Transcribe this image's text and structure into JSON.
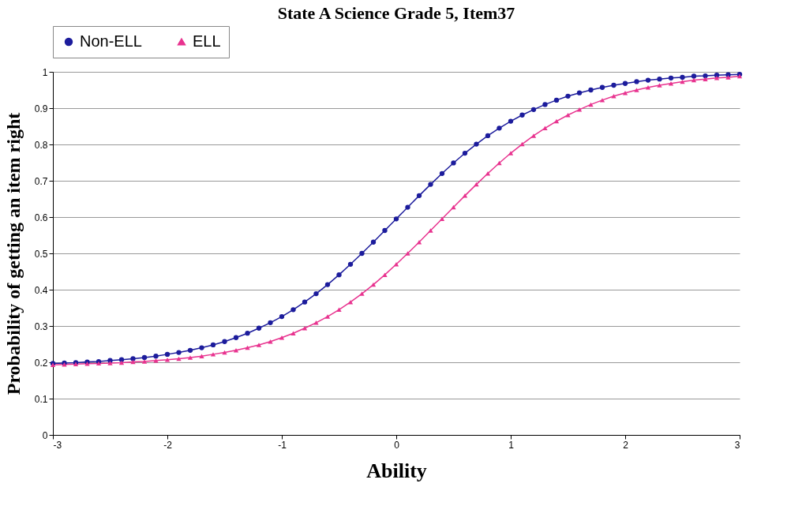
{
  "chart_data": {
    "type": "line",
    "title": "State A Science Grade 5, Item37",
    "xlabel": "Ability",
    "ylabel": "Probability of getting an item right",
    "x": [
      -3,
      -2.9,
      -2.8,
      -2.7,
      -2.6,
      -2.5,
      -2.4,
      -2.3,
      -2.2,
      -2.1,
      -2,
      -1.9,
      -1.8,
      -1.7,
      -1.6,
      -1.5,
      -1.4,
      -1.3,
      -1.2,
      -1.1,
      -1,
      -0.9,
      -0.8,
      -0.7,
      -0.6,
      -0.5,
      -0.4,
      -0.3,
      -0.2,
      -0.1,
      0,
      0.1,
      0.2,
      0.3,
      0.4,
      0.5,
      0.6,
      0.7,
      0.8,
      0.9,
      1,
      1.1,
      1.2,
      1.3,
      1.4,
      1.5,
      1.6,
      1.7,
      1.8,
      1.9,
      2,
      2.1,
      2.2,
      2.3,
      2.4,
      2.5,
      2.6,
      2.7,
      2.8,
      2.9,
      3
    ],
    "series": [
      {
        "name": "Non-ELL",
        "color": "#1c1c9c",
        "marker": "circle",
        "values": [
          0.197,
          0.198,
          0.199,
          0.201,
          0.202,
          0.205,
          0.207,
          0.21,
          0.213,
          0.217,
          0.222,
          0.227,
          0.233,
          0.24,
          0.248,
          0.257,
          0.268,
          0.28,
          0.294,
          0.309,
          0.326,
          0.345,
          0.366,
          0.389,
          0.414,
          0.441,
          0.47,
          0.5,
          0.531,
          0.563,
          0.595,
          0.627,
          0.659,
          0.69,
          0.72,
          0.749,
          0.776,
          0.801,
          0.824,
          0.845,
          0.864,
          0.881,
          0.896,
          0.91,
          0.922,
          0.933,
          0.942,
          0.95,
          0.957,
          0.963,
          0.968,
          0.973,
          0.977,
          0.98,
          0.983,
          0.985,
          0.988,
          0.989,
          0.991,
          0.992,
          0.993
        ]
      },
      {
        "name": "ELL",
        "color": "#e8338f",
        "marker": "triangle",
        "values": [
          0.193,
          0.194,
          0.195,
          0.196,
          0.197,
          0.198,
          0.199,
          0.201,
          0.202,
          0.205,
          0.207,
          0.21,
          0.213,
          0.217,
          0.222,
          0.227,
          0.233,
          0.24,
          0.248,
          0.257,
          0.268,
          0.28,
          0.294,
          0.309,
          0.326,
          0.345,
          0.366,
          0.389,
          0.414,
          0.441,
          0.47,
          0.5,
          0.531,
          0.563,
          0.595,
          0.627,
          0.659,
          0.69,
          0.72,
          0.749,
          0.776,
          0.801,
          0.824,
          0.845,
          0.864,
          0.881,
          0.896,
          0.91,
          0.922,
          0.933,
          0.942,
          0.95,
          0.957,
          0.963,
          0.968,
          0.973,
          0.977,
          0.98,
          0.983,
          0.985,
          0.988
        ]
      }
    ],
    "xlim": [
      -3,
      3
    ],
    "xticks": [
      -3,
      -2,
      -1,
      0,
      1,
      2,
      3
    ],
    "ylim": [
      0,
      1
    ],
    "yticks": [
      0,
      0.1,
      0.2,
      0.3,
      0.4,
      0.5,
      0.6,
      0.7,
      0.8,
      0.9,
      1
    ],
    "grid": "y",
    "legend": "top",
    "line_style": "solid"
  }
}
